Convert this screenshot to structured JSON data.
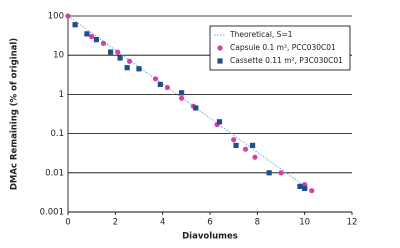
{
  "chart_data": {
    "type": "scatter",
    "x_label": "Diavolumes",
    "y_label": "DMAc Remaining (% of original)",
    "xlim": [
      0,
      12
    ],
    "xticks": [
      0,
      2,
      4,
      6,
      8,
      10,
      12
    ],
    "ylim": [
      0.001,
      100
    ],
    "yticks": [
      0.001,
      0.01,
      0.1,
      1,
      10,
      100
    ],
    "ylog": true,
    "grid": true,
    "legend": "upper right",
    "series": [
      {
        "name": "Theoretical, S=1",
        "kind": "line",
        "color": "#6aaed6",
        "x": [
          0,
          2,
          4,
          6,
          8,
          10.3
        ],
        "values": [
          100,
          13.5,
          1.83,
          0.248,
          0.0335,
          0.0034
        ]
      },
      {
        "name": "Capsule 0.1 m², PCC030C01",
        "kind": "dot",
        "color": "#d63fa6",
        "x": [
          0,
          0.3,
          1.0,
          1.5,
          2.1,
          2.6,
          3.0,
          3.7,
          4.2,
          4.8,
          5.3,
          6.3,
          7.0,
          7.5,
          7.9,
          9.0,
          10.0,
          10.3
        ],
        "values": [
          100,
          60,
          30,
          20,
          12,
          7,
          4.5,
          2.5,
          1.5,
          0.8,
          0.5,
          0.17,
          0.07,
          0.04,
          0.025,
          0.01,
          0.005,
          0.0035
        ]
      },
      {
        "name": "Cassette 0.11 m², P3C030C01",
        "kind": "square",
        "color": "#1f4e8c",
        "x": [
          0.3,
          0.8,
          1.2,
          1.8,
          2.2,
          2.5,
          3.0,
          3.9,
          4.8,
          5.4,
          6.4,
          7.1,
          7.8,
          8.5,
          9.8,
          10.0
        ],
        "values": [
          60,
          35,
          25,
          12,
          8.5,
          4.8,
          4.5,
          1.8,
          1.1,
          0.45,
          0.2,
          0.05,
          0.05,
          0.01,
          0.0045,
          0.004
        ]
      }
    ]
  }
}
